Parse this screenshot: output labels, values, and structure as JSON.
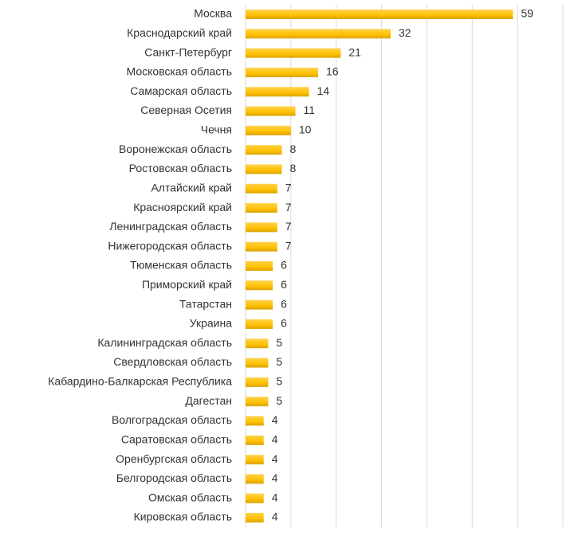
{
  "chart_data": {
    "type": "bar",
    "orientation": "horizontal",
    "categories": [
      "Москва",
      "Краснодарский край",
      "Санкт-Петербург",
      "Московская область",
      "Самарская область",
      "Северная Осетия",
      "Чечня",
      "Воронежская область",
      "Ростовская область",
      "Алтайский край",
      "Красноярский край",
      "Ленинградская область",
      "Нижегородская область",
      "Тюменская область",
      "Приморский край",
      "Татарстан",
      "Украина",
      "Калининградская область",
      "Свердловская область",
      "Кабардино-Балкарская Республика",
      "Дагестан",
      "Волгоградская область",
      "Саратовская область",
      "Оренбургская область",
      "Белгородская область",
      "Омская область",
      "Кировская область"
    ],
    "values": [
      59,
      32,
      21,
      16,
      14,
      11,
      10,
      8,
      8,
      7,
      7,
      7,
      7,
      6,
      6,
      6,
      6,
      5,
      5,
      5,
      5,
      4,
      4,
      4,
      4,
      4,
      4
    ],
    "color": "#ffc000",
    "xlim": [
      0,
      70
    ],
    "xticks": [
      0,
      10,
      20,
      30,
      40,
      50,
      60,
      70
    ],
    "grid": true
  }
}
